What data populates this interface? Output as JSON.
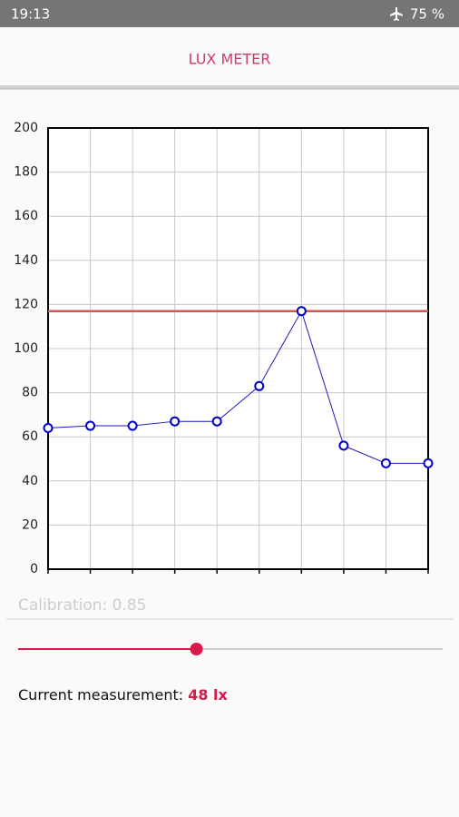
{
  "status_bar": {
    "time": "19:13",
    "battery": "75 %"
  },
  "app_bar": {
    "title": "LUX METER"
  },
  "chart_data": {
    "type": "line",
    "categories": [
      null,
      null,
      null,
      null,
      null,
      null,
      null,
      null,
      null,
      null
    ],
    "series": [
      {
        "color": "#1a1ab8",
        "marker_color": "#0000cc",
        "values": [
          64,
          65,
          65,
          67,
          67,
          83,
          117,
          56,
          48,
          48
        ]
      }
    ],
    "reference_line": {
      "value": 117,
      "color": "#d9534f"
    },
    "ylim": [
      0,
      200
    ],
    "yticks": [
      0,
      20,
      40,
      60,
      80,
      100,
      120,
      140,
      160,
      180,
      200
    ],
    "grid": true
  },
  "calibration": {
    "label": "Calibration: 0.85",
    "slider_value": 0.42,
    "color": "#d81b4a"
  },
  "measurement": {
    "label": "Current measurement:",
    "value": "48 lx"
  }
}
